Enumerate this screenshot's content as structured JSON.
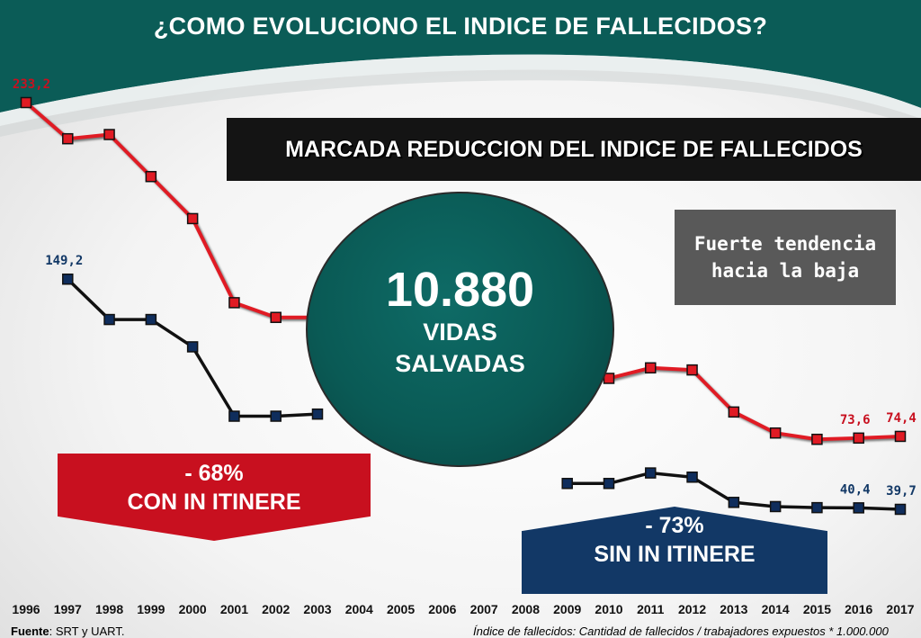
{
  "title": "¿COMO EVOLUCIONO EL INDICE DE FALLECIDOS?",
  "banner": "MARCADA REDUCCION DEL INDICE DE FALLECIDOS",
  "trend_box": {
    "line1": "Fuerte tendencia",
    "line2": "hacia la baja"
  },
  "center_circle": {
    "number": "10.880",
    "line1": "VIDAS",
    "line2": "SALVADAS"
  },
  "red_arrow": {
    "pct": "- 68%",
    "label": "CON IN ITINERE"
  },
  "blue_arrow": {
    "pct": "- 73%",
    "label": "SIN IN ITINERE"
  },
  "footer": {
    "source_label": "Fuente",
    "source_text": ": SRT y UART.",
    "definition": "Índice de fallecidos: Cantidad de fallecidos / trabajadores expuestos * 1.000.000"
  },
  "colors": {
    "red_series": "#e01b24",
    "blue_series": "#0f2d5c",
    "teal": "#0b5c57"
  },
  "chart_data": {
    "type": "line",
    "x": [
      "1996",
      "1997",
      "1998",
      "1999",
      "2000",
      "2001",
      "2002",
      "2003",
      "2004",
      "2005",
      "2006",
      "2007",
      "2008",
      "2009",
      "2010",
      "2011",
      "2012",
      "2013",
      "2014",
      "2015",
      "2016",
      "2017"
    ],
    "series": [
      {
        "name": "CON IN ITINERE",
        "color": "#e01b24",
        "marker": "square",
        "values": [
          233.2,
          216,
          218,
          198,
          178,
          138,
          131,
          131,
          null,
          null,
          null,
          null,
          null,
          null,
          102,
          107,
          106,
          86,
          76,
          73,
          73.6,
          74.4
        ],
        "data_labels": {
          "0": "233,2",
          "20": "73,6",
          "21": "74,4"
        }
      },
      {
        "name": "SIN IN ITINERE",
        "color": "#0f2d5c",
        "marker": "square",
        "values": [
          null,
          149.2,
          130,
          130,
          117,
          84,
          84,
          85,
          null,
          null,
          null,
          null,
          null,
          52,
          52,
          57,
          55,
          43,
          41,
          40.5,
          40.4,
          39.7
        ],
        "data_labels": {
          "1": "149,2",
          "20": "40,4",
          "21": "39,7"
        }
      }
    ],
    "ylim": [
      20,
      240
    ]
  }
}
